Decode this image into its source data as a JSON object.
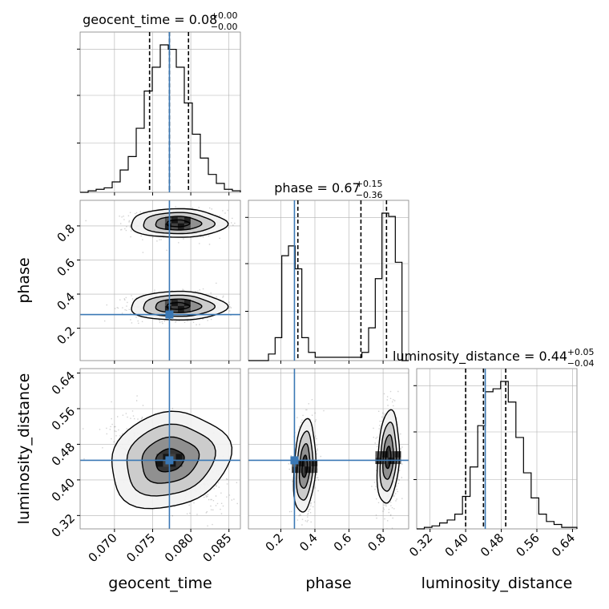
{
  "chart_data": {
    "type": "corner",
    "parameters": [
      "geocent_time",
      "phase",
      "luminosity_distance"
    ],
    "truths": {
      "geocent_time": 0.0772,
      "phase": 0.28,
      "luminosity_distance": 0.444
    },
    "colors": {
      "truth": "#3a78b5",
      "hist": "#000000",
      "grid": "#b0b0b0",
      "contour": "#000000",
      "density_dark": "#111111"
    },
    "titles": [
      {
        "param": "geocent_time",
        "text": "geocent_time = 0.08",
        "sup": "+0.00",
        "sub": "−0.00"
      },
      {
        "param": "phase",
        "text": "phase = 0.67",
        "sup": "+0.15",
        "sub": "−0.36"
      },
      {
        "param": "luminosity_distance",
        "text": "luminosity_distance = 0.44",
        "sup": "+0.05",
        "sub": "−0.04"
      }
    ],
    "axis_labels": {
      "geocent_time": "geocent_time",
      "phase": "phase",
      "luminosity_distance": "luminosity_distance"
    },
    "ranges": {
      "geocent_time": [
        0.0655,
        0.0865
      ],
      "phase": [
        0.01,
        0.95
      ],
      "luminosity_distance": [
        0.29,
        0.65
      ]
    },
    "ticks": {
      "geocent_time": {
        "values": [
          0.07,
          0.075,
          0.08,
          0.085
        ],
        "labels": [
          "0.070",
          "0.075",
          "0.080",
          "0.085"
        ]
      },
      "phase": {
        "values": [
          0.2,
          0.4,
          0.6,
          0.8
        ],
        "labels": [
          "0.2",
          "0.4",
          "0.6",
          "0.8"
        ]
      },
      "luminosity_distance": {
        "values": [
          0.32,
          0.4,
          0.48,
          0.56,
          0.64
        ],
        "labels": [
          "0.32",
          "0.40",
          "0.48",
          "0.56",
          "0.64"
        ]
      }
    },
    "quantiles": {
      "geocent_time": [
        0.0746,
        0.0772,
        0.0797
      ],
      "phase": [
        0.3,
        0.67,
        0.82
      ],
      "luminosity_distance": [
        0.4,
        0.44,
        0.49
      ]
    },
    "hist_1d": {
      "geocent_time": {
        "edges_range": [
          0.0655,
          0.0865
        ],
        "counts": [
          0,
          1,
          2,
          3,
          7,
          15,
          24,
          43,
          68,
          84,
          99,
          96,
          84,
          60,
          39,
          23,
          12,
          6,
          2,
          1
        ]
      },
      "phase": {
        "edges_range": [
          0.01,
          0.95
        ],
        "counts": [
          0,
          0,
          0,
          4,
          14,
          64,
          70,
          56,
          14,
          5,
          2,
          2,
          2,
          2,
          2,
          2,
          2,
          5,
          20,
          50,
          90,
          88,
          60,
          0
        ]
      },
      "luminosity_distance": {
        "edges_range": [
          0.29,
          0.65
        ],
        "counts": [
          0,
          1,
          2,
          4,
          6,
          10,
          22,
          42,
          70,
          93,
          95,
          100,
          86,
          62,
          38,
          21,
          10,
          5,
          3,
          1,
          1
        ]
      }
    },
    "posterior_modes": {
      "geocent_time_vs_phase": [
        {
          "mean": [
            0.0783,
            0.815
          ],
          "sd": [
            0.003,
            0.04
          ]
        },
        {
          "mean": [
            0.0783,
            0.33
          ],
          "sd": [
            0.003,
            0.04
          ]
        }
      ],
      "geocent_time_vs_luminosity_distance": [
        {
          "mean": [
            0.0772,
            0.444
          ],
          "sd": [
            0.0038,
            0.05
          ],
          "corr": -0.55
        }
      ],
      "phase_vs_luminosity_distance": [
        {
          "mean": [
            0.34,
            0.43
          ],
          "sd": [
            0.03,
            0.05
          ],
          "corr": 0.1
        },
        {
          "mean": [
            0.83,
            0.45
          ],
          "sd": [
            0.03,
            0.05
          ],
          "corr": 0.1
        }
      ]
    },
    "grid": true,
    "legend": "none"
  }
}
